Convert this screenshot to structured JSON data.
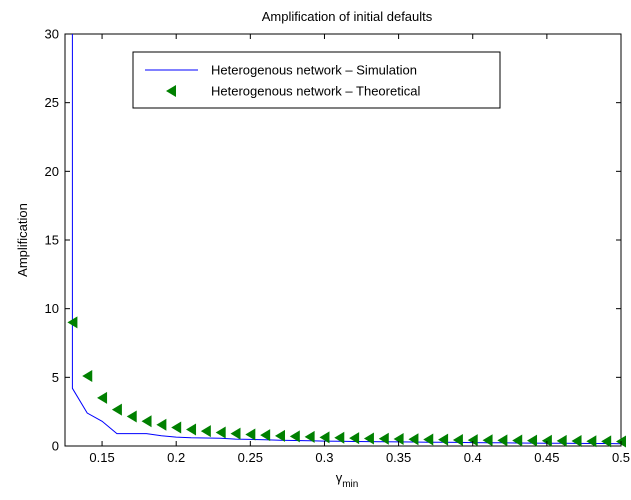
{
  "chart_data": {
    "type": "line",
    "title": "Amplification of initial defaults",
    "xlabel_main": "γ",
    "xlabel_sub": "min",
    "ylabel": "Amplification",
    "xlim": [
      0.125,
      0.5
    ],
    "ylim": [
      0,
      30
    ],
    "x_ticks": [
      0.15,
      0.2,
      0.25,
      0.3,
      0.35,
      0.4,
      0.45,
      0.5
    ],
    "x_tick_labels": [
      "0.15",
      "0.2",
      "0.25",
      "0.3",
      "0.35",
      "0.4",
      "0.45",
      "0.5"
    ],
    "y_ticks": [
      0,
      5,
      10,
      15,
      20,
      25,
      30
    ],
    "y_tick_labels": [
      "0",
      "5",
      "10",
      "15",
      "20",
      "25",
      "30"
    ],
    "grid": false,
    "legend_position": "top-center",
    "series": [
      {
        "name": "Heterogenous network – Simulation",
        "style": "line",
        "color": "#0000ff",
        "x": [
          0.13,
          0.13,
          0.13,
          0.14,
          0.15,
          0.16,
          0.17,
          0.18,
          0.19,
          0.2,
          0.21,
          0.22,
          0.23,
          0.24,
          0.25,
          0.26,
          0.27,
          0.28,
          0.29,
          0.3,
          0.31,
          0.32,
          0.33,
          0.34,
          0.35,
          0.36,
          0.37,
          0.38,
          0.39,
          0.4,
          0.41,
          0.42,
          0.43,
          0.44,
          0.45,
          0.46,
          0.47,
          0.48,
          0.49,
          0.5
        ],
        "y": [
          30,
          9,
          4.2,
          2.4,
          1.8,
          0.9,
          0.9,
          0.9,
          0.75,
          0.65,
          0.6,
          0.58,
          0.56,
          0.5,
          0.48,
          0.45,
          0.42,
          0.4,
          0.38,
          0.36,
          0.34,
          0.33,
          0.32,
          0.31,
          0.3,
          0.29,
          0.28,
          0.27,
          0.26,
          0.25,
          0.24,
          0.23,
          0.22,
          0.21,
          0.2,
          0.2,
          0.19,
          0.18,
          0.18,
          0.17
        ]
      },
      {
        "name": "Heterogenous network – Theoretical",
        "style": "triangle-left",
        "color": "#008000",
        "x": [
          0.13,
          0.14,
          0.15,
          0.16,
          0.17,
          0.18,
          0.19,
          0.2,
          0.21,
          0.22,
          0.23,
          0.24,
          0.25,
          0.26,
          0.27,
          0.28,
          0.29,
          0.3,
          0.31,
          0.32,
          0.33,
          0.34,
          0.35,
          0.36,
          0.37,
          0.38,
          0.39,
          0.4,
          0.41,
          0.42,
          0.43,
          0.44,
          0.45,
          0.46,
          0.47,
          0.48,
          0.49,
          0.5
        ],
        "y": [
          9.0,
          5.1,
          3.5,
          2.65,
          2.15,
          1.8,
          1.55,
          1.35,
          1.2,
          1.08,
          0.98,
          0.9,
          0.84,
          0.79,
          0.74,
          0.7,
          0.66,
          0.63,
          0.6,
          0.57,
          0.55,
          0.53,
          0.51,
          0.49,
          0.47,
          0.46,
          0.44,
          0.43,
          0.42,
          0.41,
          0.4,
          0.39,
          0.38,
          0.37,
          0.36,
          0.35,
          0.34,
          0.33
        ]
      }
    ]
  }
}
